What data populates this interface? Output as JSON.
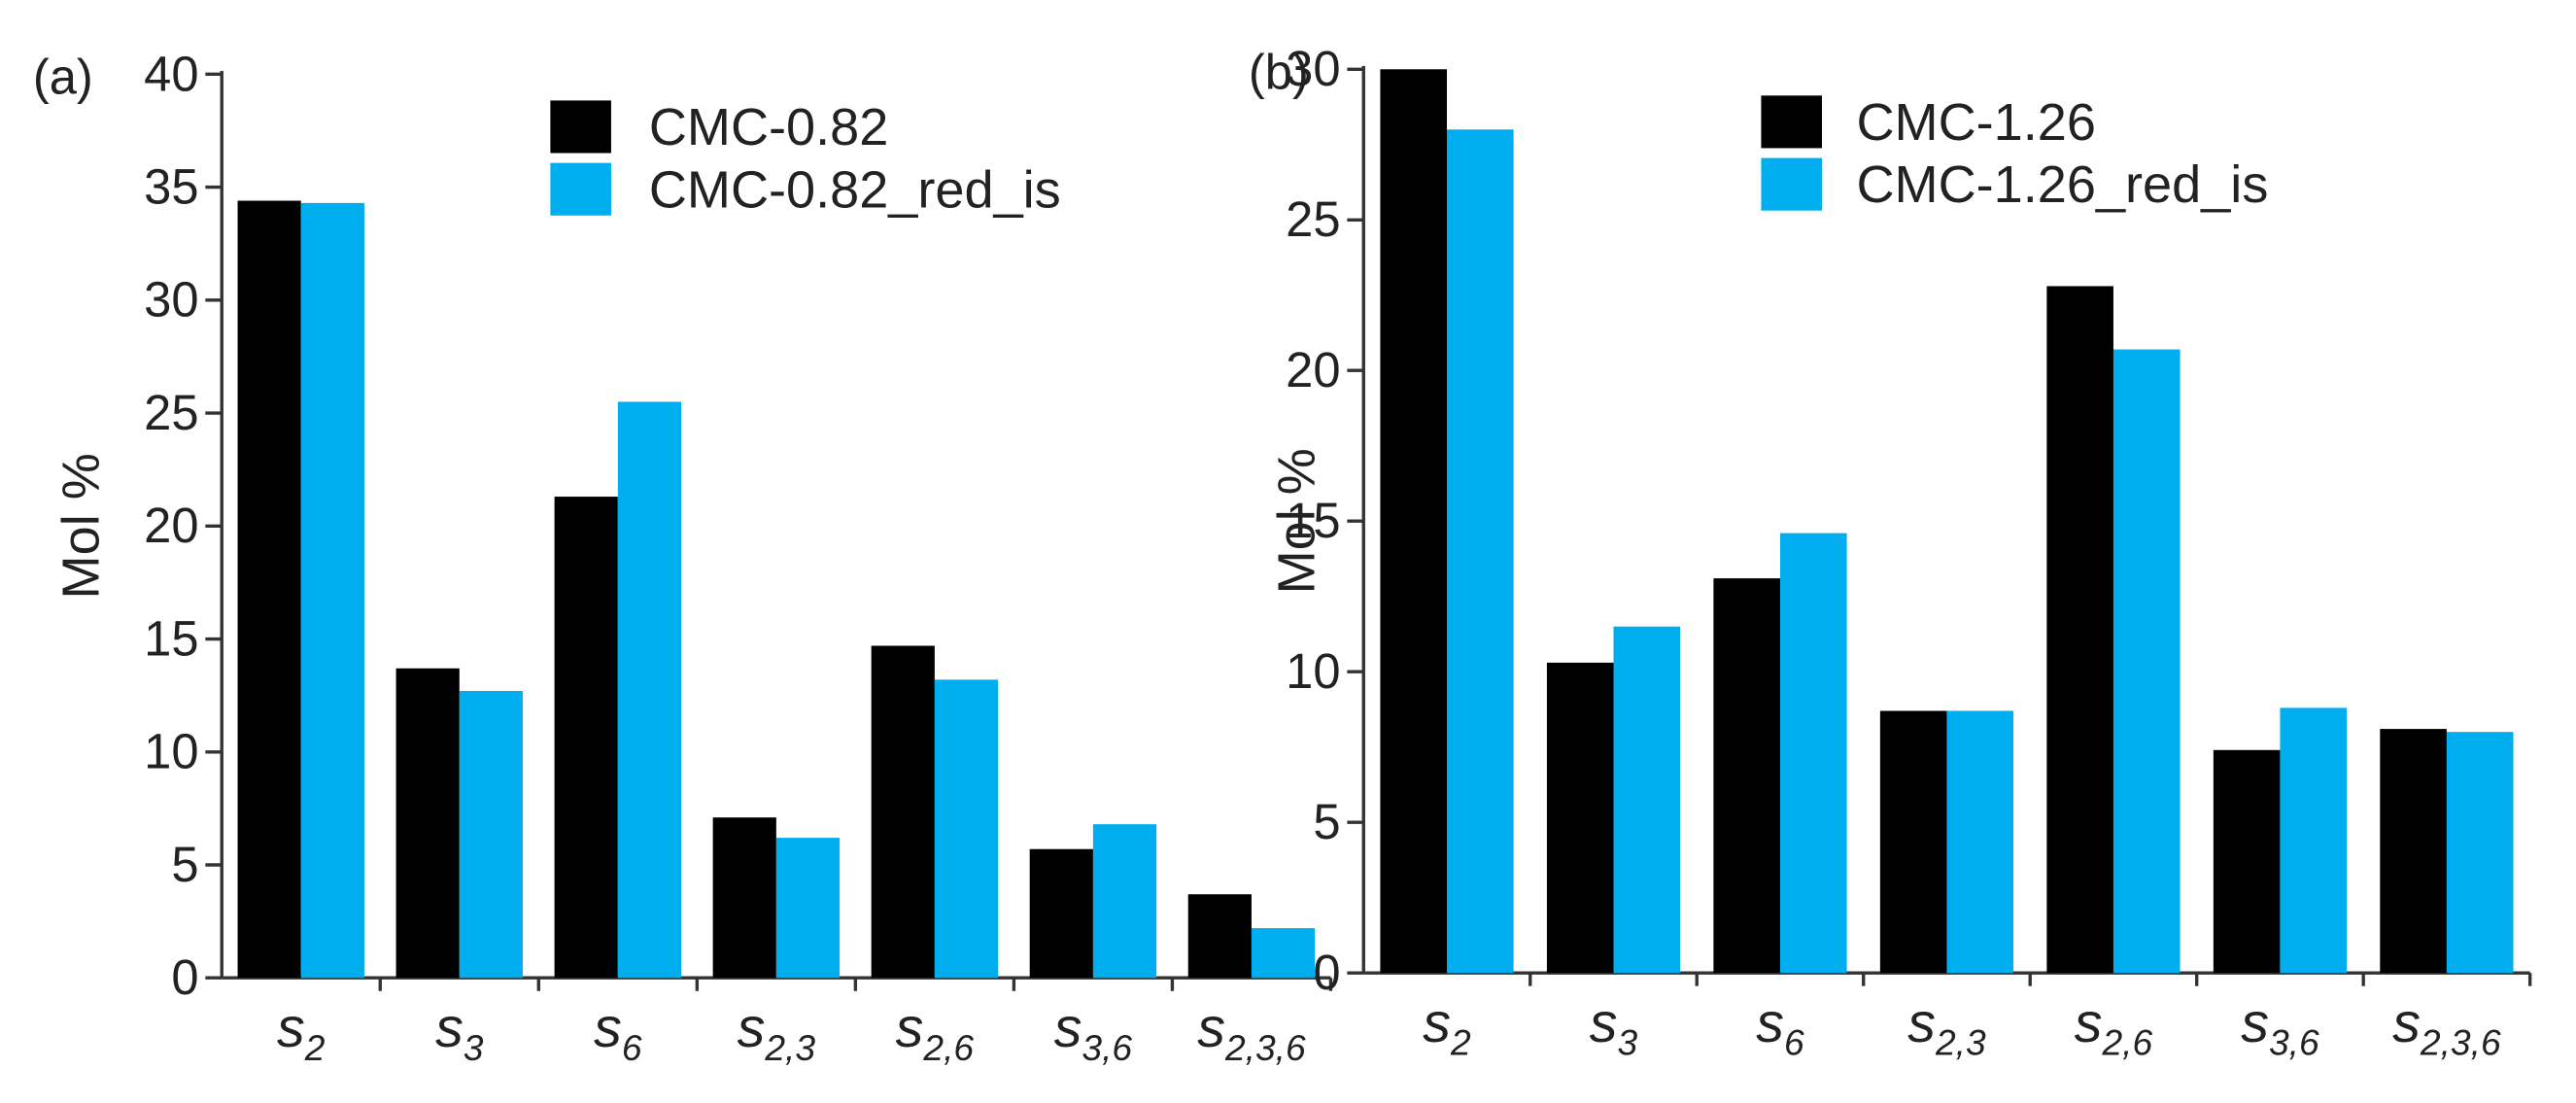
{
  "chart_data": [
    {
      "type": "bar",
      "panel_label": "(a)",
      "y_label": "Mol %",
      "categories": [
        "s2",
        "s3",
        "s6",
        "s2,3",
        "s2,6",
        "s3,6",
        "s2,3,6"
      ],
      "series": [
        {
          "name": "CMC-0.82",
          "color": "#000000",
          "values": [
            34.4,
            13.7,
            21.3,
            7.1,
            14.7,
            5.7,
            3.7
          ]
        },
        {
          "name": "CMC-0.82_red_is",
          "color": "#00aeef",
          "values": [
            34.3,
            12.7,
            25.5,
            6.2,
            13.2,
            6.8,
            2.2
          ]
        }
      ],
      "ylim": [
        0,
        40
      ],
      "yticks": [
        0,
        5,
        10,
        15,
        20,
        25,
        30,
        35,
        40
      ]
    },
    {
      "type": "bar",
      "panel_label": "(b)",
      "y_label": "Mol %",
      "categories": [
        "s2",
        "s3",
        "s6",
        "s2,3",
        "s2,6",
        "s3,6",
        "s2,3,6"
      ],
      "series": [
        {
          "name": "CMC-1.26",
          "color": "#000000",
          "values": [
            30.0,
            10.3,
            13.1,
            8.7,
            22.8,
            7.4,
            8.1
          ]
        },
        {
          "name": "CMC-1.26_red_is",
          "color": "#00aeef",
          "values": [
            28.0,
            11.5,
            14.6,
            8.7,
            20.7,
            8.8,
            8.0
          ]
        }
      ],
      "ylim": [
        0,
        30
      ],
      "yticks": [
        0,
        5,
        10,
        15,
        20,
        25,
        30
      ]
    }
  ]
}
